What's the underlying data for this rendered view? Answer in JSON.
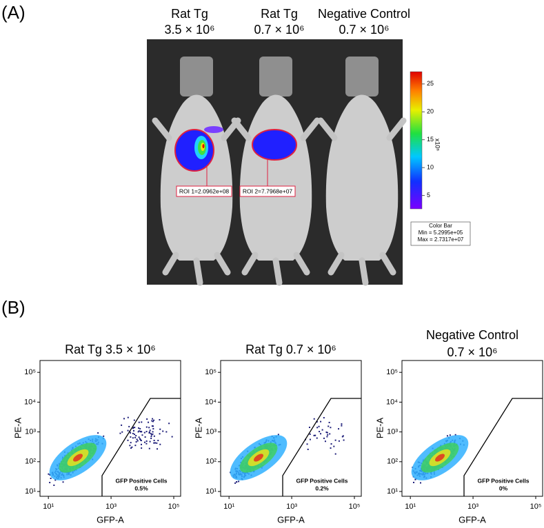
{
  "panel_a": {
    "label": "(A)",
    "columns": [
      {
        "title": "Rat Tg",
        "dose": "3.5 × 10⁶"
      },
      {
        "title": "Rat Tg",
        "dose": "0.7 × 10⁶"
      },
      {
        "title": "Negative Control",
        "dose": "0.7 × 10⁶"
      }
    ],
    "roi_labels": [
      "ROI 1=2.0962e+08",
      "ROI 2=7.7968e+07"
    ],
    "color_bar": {
      "unit": "x10⁶",
      "lim": [
        2.6,
        27.2
      ],
      "ticks": [
        5,
        10,
        15,
        20,
        25
      ],
      "legend": [
        "Color Bar",
        "Min = 5.2995e+05",
        "Max = 2.7317e+07"
      ]
    }
  },
  "panel_b": {
    "label": "(B)",
    "x_label": "GFP-A",
    "y_label": "PE-A",
    "log": true,
    "xlim": [
      5.4,
      166000
    ],
    "ylim": [
      6.9,
      250000
    ],
    "xticks": [
      {
        "value": 10,
        "label": "10¹"
      },
      {
        "value": 1000,
        "label": "10³"
      },
      {
        "value": 100000,
        "label": "10⁵"
      }
    ],
    "yticks": [
      {
        "value": 10,
        "label": "10¹"
      },
      {
        "value": 100,
        "label": "10²"
      },
      {
        "value": 1000,
        "label": "10³"
      },
      {
        "value": 10000,
        "label": "10⁴"
      },
      {
        "value": 100000,
        "label": "10⁵"
      }
    ],
    "plots": [
      {
        "title_lines": [
          "Rat Tg  3.5 × 10⁶"
        ],
        "gate_label": "GFP Positive Cells",
        "gate_value": "0.5%"
      },
      {
        "title_lines": [
          "Rat Tg  0.7 × 10⁶"
        ],
        "gate_label": "GFP Positive Cells",
        "gate_value": "0.2%"
      },
      {
        "title_lines": [
          "Negative Control",
          "0.7 × 10⁶"
        ],
        "gate_label": "GFP Positive Cells",
        "gate_value": "0%"
      }
    ]
  }
}
